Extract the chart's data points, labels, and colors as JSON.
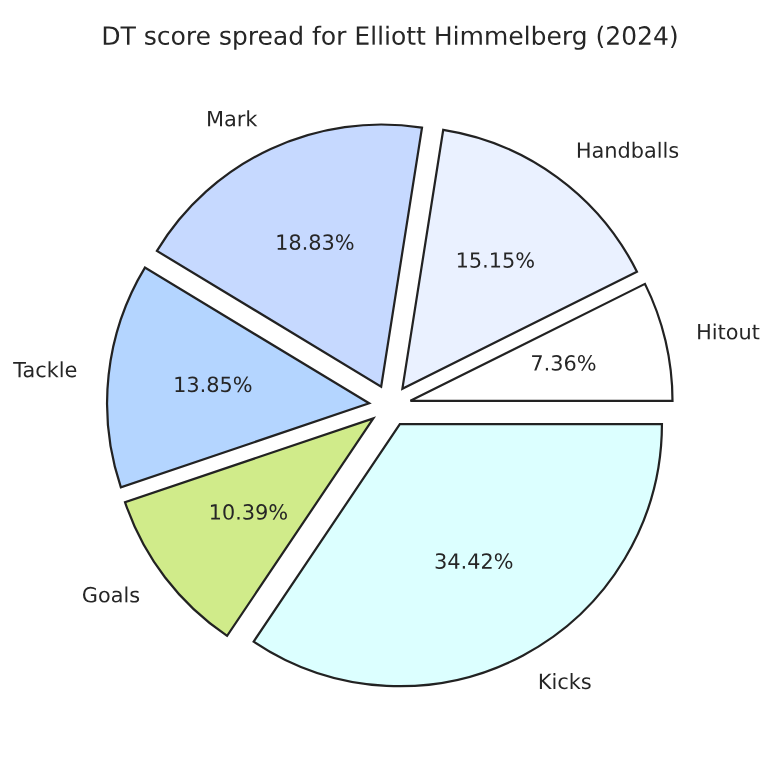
{
  "chart_data": {
    "type": "pie",
    "title": "DT score spread for Elliott Himmelberg (2024)",
    "categories": [
      "Hitout",
      "Handballs",
      "Mark",
      "Tackle",
      "Goals",
      "Kicks"
    ],
    "values": [
      7.36,
      15.15,
      18.83,
      13.85,
      10.39,
      34.42
    ],
    "value_labels": [
      "7.36%",
      "15.15%",
      "18.83%",
      "13.85%",
      "10.39%",
      "34.42%"
    ],
    "colors": [
      "#ffffff",
      "#eaf1ff",
      "#c6d9ff",
      "#b4d5ff",
      "#d0eb8a",
      "#dcffff"
    ],
    "legend": false
  }
}
